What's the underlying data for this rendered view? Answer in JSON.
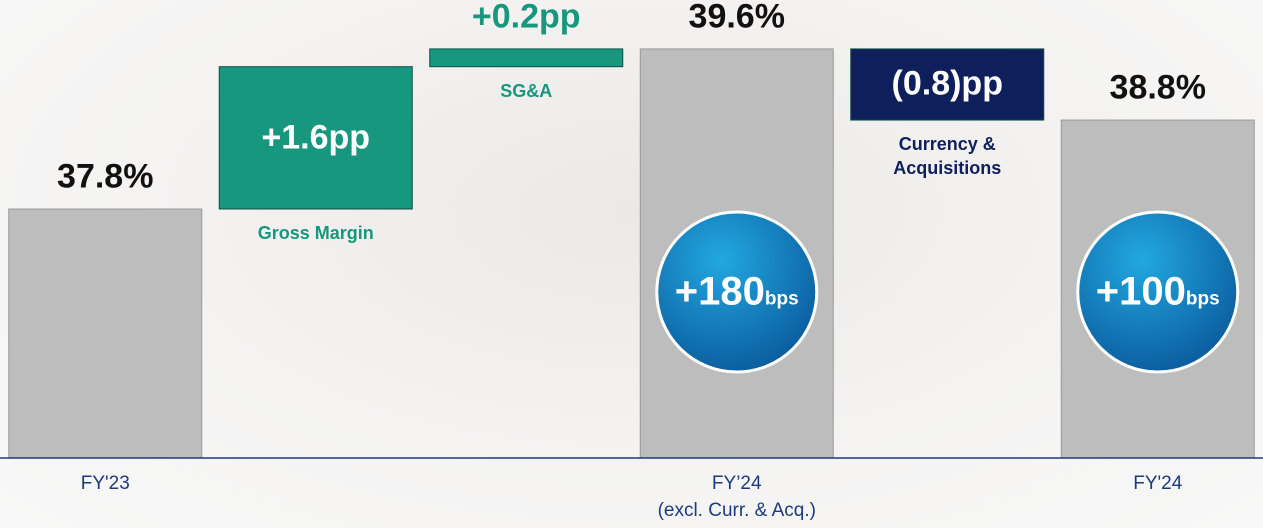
{
  "chart_data": {
    "type": "waterfall",
    "categories": [
      "FY'23",
      null,
      null,
      "FY’24\n(excl. Curr. & Acq.)",
      null,
      "FY'24"
    ],
    "step_names": [
      null,
      "Gross Margin",
      "SG&A",
      null,
      "Currency &\nAcquisitions",
      null
    ],
    "values": [
      37.8,
      1.6,
      0.2,
      39.6,
      -0.8,
      38.8
    ],
    "value_labels": [
      "37.8%",
      "+1.6pp",
      "+0.2pp",
      "39.6%",
      "(0.8)pp",
      "38.8%"
    ],
    "is_total": [
      true,
      false,
      false,
      true,
      false,
      true
    ],
    "colors": [
      "#bdbdbd",
      "#17977d",
      "#17977d",
      "#bdbdbd",
      "#0f1f5c",
      "#bdbdbd"
    ],
    "bubbles": [
      "+180",
      "+100"
    ],
    "bubble_unit": "bps",
    "ylim": [
      35,
      40.15
    ]
  }
}
